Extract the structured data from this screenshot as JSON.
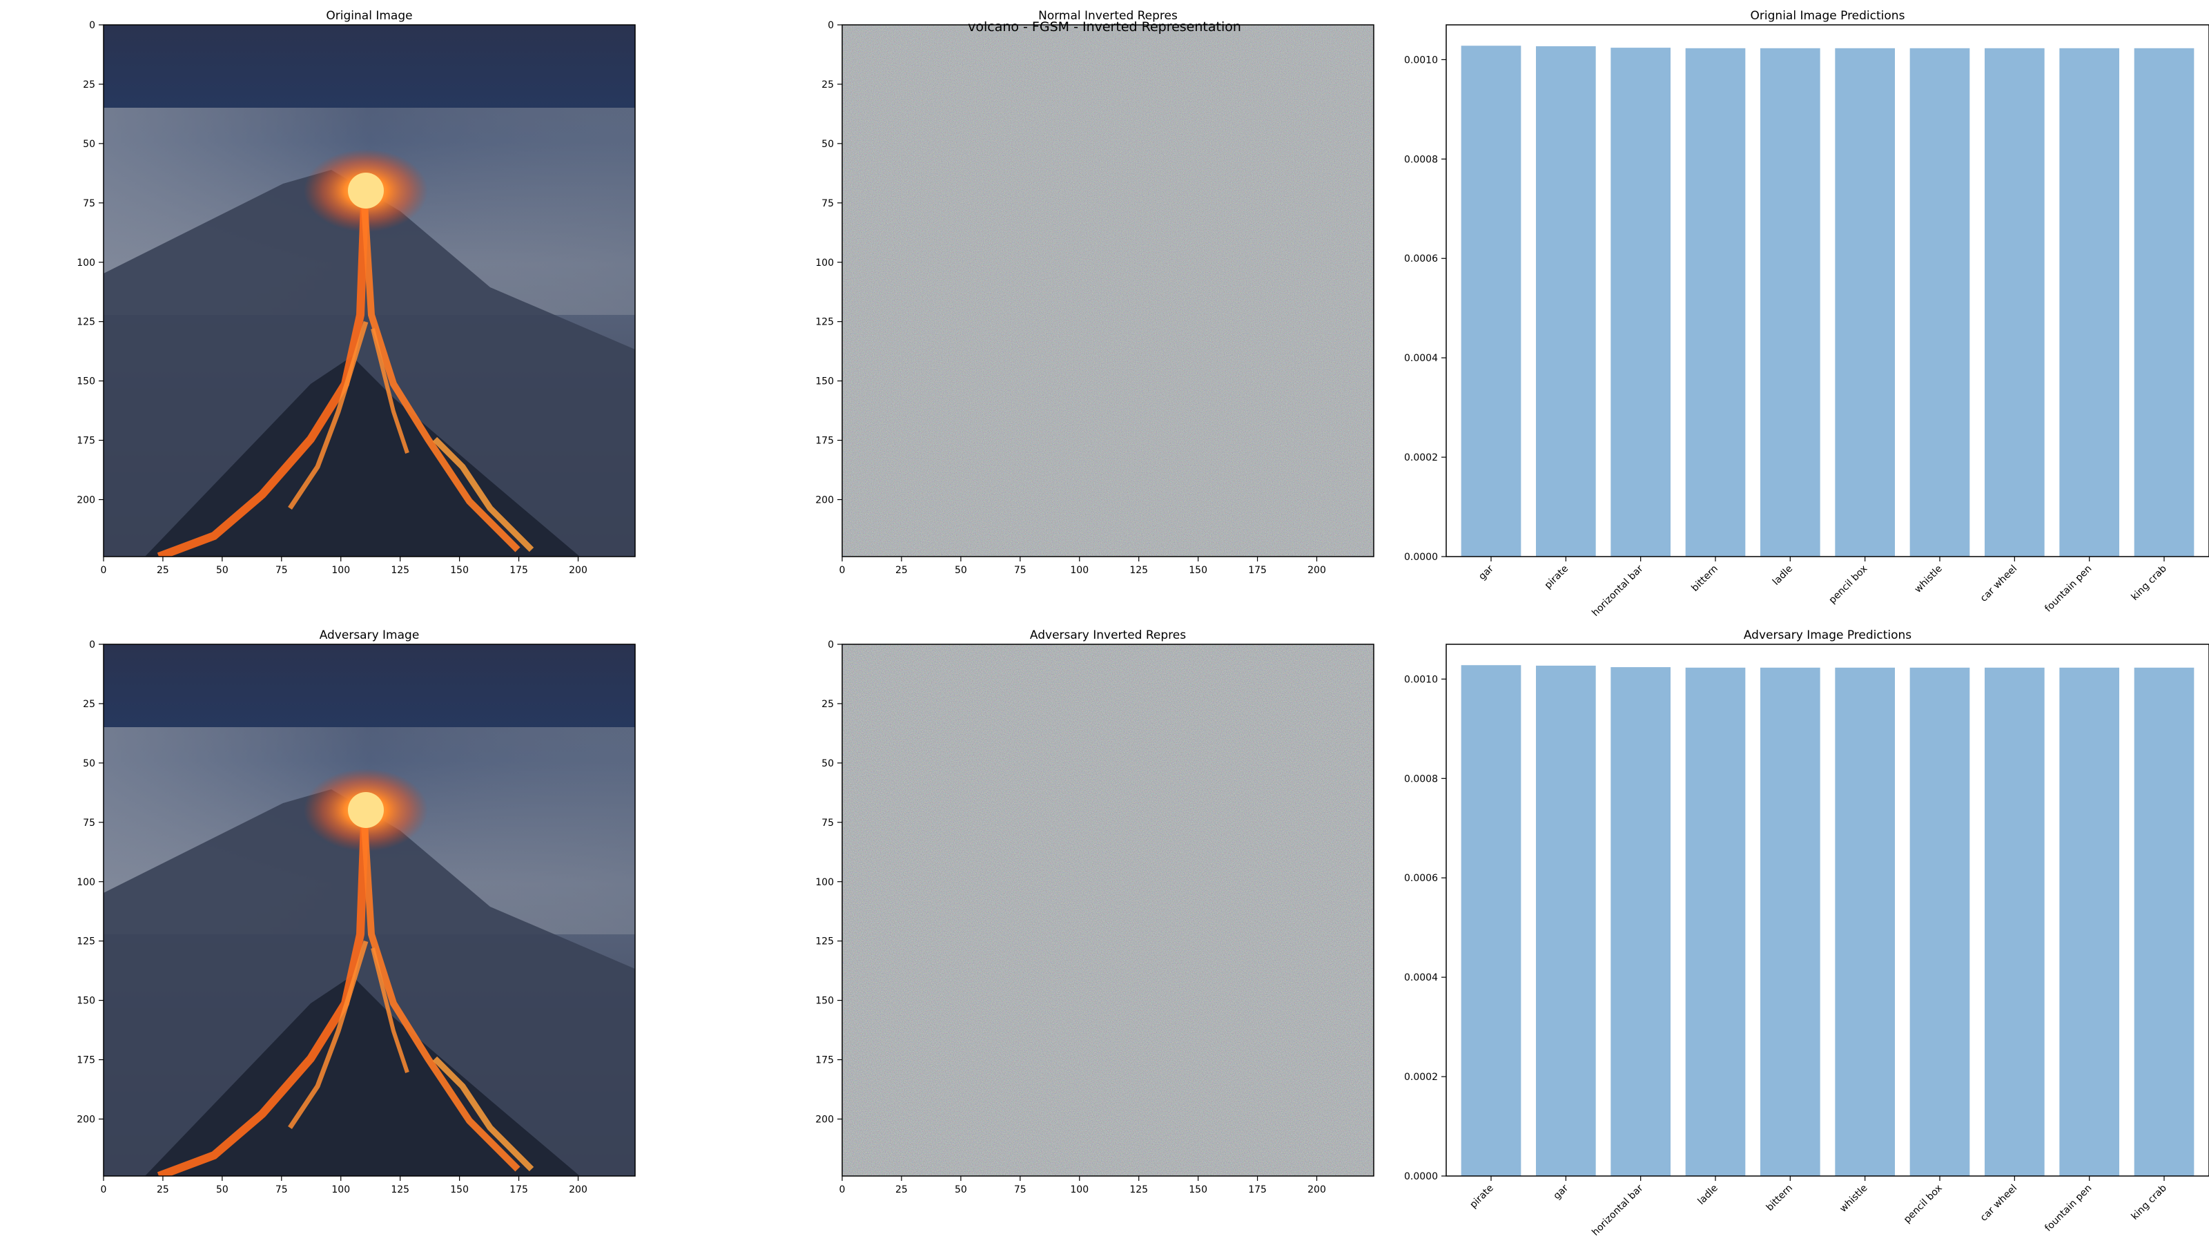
{
  "figure": {
    "suptitle": "volcano - FGSM - Inverted Representation"
  },
  "images": [
    {
      "title": "Original Image",
      "xticks": [
        0,
        25,
        50,
        75,
        100,
        125,
        150,
        175,
        200
      ],
      "yticks": [
        0,
        25,
        50,
        75,
        100,
        125,
        150,
        175,
        200
      ],
      "xlim": [
        0,
        224
      ],
      "ylim": [
        224,
        0
      ]
    },
    {
      "title": "Normal Inverted Repres",
      "xticks": [
        0,
        25,
        50,
        75,
        100,
        125,
        150,
        175,
        200
      ],
      "yticks": [
        0,
        25,
        50,
        75,
        100,
        125,
        150,
        175,
        200
      ],
      "xlim": [
        0,
        224
      ],
      "ylim": [
        224,
        0
      ]
    },
    {
      "title": "Adversary Image",
      "xticks": [
        0,
        25,
        50,
        75,
        100,
        125,
        150,
        175,
        200
      ],
      "yticks": [
        0,
        25,
        50,
        75,
        100,
        125,
        150,
        175,
        200
      ],
      "xlim": [
        0,
        224
      ],
      "ylim": [
        224,
        0
      ]
    },
    {
      "title": "Adversary Inverted Repres",
      "xticks": [
        0,
        25,
        50,
        75,
        100,
        125,
        150,
        175,
        200
      ],
      "yticks": [
        0,
        25,
        50,
        75,
        100,
        125,
        150,
        175,
        200
      ],
      "xlim": [
        0,
        224
      ],
      "ylim": [
        224,
        0
      ]
    }
  ],
  "chart_data": [
    {
      "type": "bar",
      "title": "Orignial Image Predictions",
      "categories": [
        "gar",
        "pirate",
        "horizontal bar",
        "bittern",
        "ladle",
        "pencil box",
        "whistle",
        "car wheel",
        "fountain pen",
        "king crab"
      ],
      "values": [
        0.001028,
        0.001027,
        0.001024,
        0.001023,
        0.001023,
        0.001023,
        0.001023,
        0.001023,
        0.001023,
        0.001023
      ],
      "ylim": [
        0,
        0.00107
      ],
      "yticks": [
        "0.0000",
        "0.0002",
        "0.0004",
        "0.0006",
        "0.0008",
        "0.0010"
      ],
      "color": "#8fb8da"
    },
    {
      "type": "bar",
      "title": "Adversary Image Predictions",
      "categories": [
        "pirate",
        "gar",
        "horizontal bar",
        "ladle",
        "bittern",
        "whistle",
        "pencil box",
        "car wheel",
        "fountain pen",
        "king crab"
      ],
      "values": [
        0.001028,
        0.001027,
        0.001024,
        0.001023,
        0.001023,
        0.001023,
        0.001023,
        0.001023,
        0.001023,
        0.001023
      ],
      "ylim": [
        0,
        0.00107
      ],
      "yticks": [
        "0.0000",
        "0.0002",
        "0.0004",
        "0.0006",
        "0.0008",
        "0.0010"
      ],
      "color": "#8fb8da"
    }
  ]
}
